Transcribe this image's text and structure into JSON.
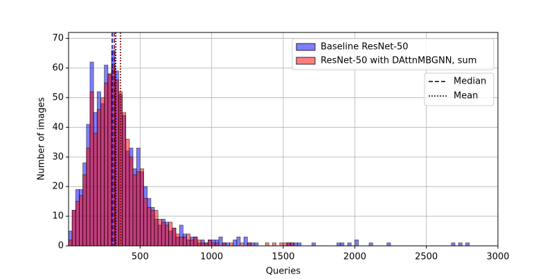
{
  "chart_data": {
    "type": "histogram",
    "xlabel": "Queries",
    "ylabel": "Number of images",
    "xlim": [
      0,
      3000
    ],
    "ylim": [
      0,
      72
    ],
    "xticks": [
      500,
      1000,
      1500,
      2000,
      2500,
      3000
    ],
    "yticks": [
      0,
      10,
      20,
      30,
      40,
      50,
      60,
      70
    ],
    "grid": true,
    "alpha": 0.5,
    "edgecolor": "#000000",
    "legend_position": "upper right",
    "series": [
      {
        "name": "Baseline ResNet-50",
        "color": "#0000ff",
        "line_color": "#00008b",
        "bins": [
          0,
          25,
          50,
          75,
          100,
          125,
          150,
          175,
          200,
          225,
          250,
          275,
          300,
          325,
          350,
          375,
          400,
          425,
          450,
          475,
          500,
          525,
          550,
          575,
          600,
          625,
          650,
          675,
          700,
          725,
          750,
          775,
          800,
          825,
          850,
          875,
          900,
          925,
          950,
          975,
          1000,
          1025,
          1050,
          1075,
          1100,
          1125,
          1150,
          1175,
          1200,
          1225,
          1250,
          1275,
          1300,
          1325,
          1350,
          1375,
          1400,
          1425,
          1450,
          1475,
          1500,
          1525,
          1550,
          1575,
          1600,
          1625,
          1650,
          1675,
          1700,
          1725,
          1750,
          1775,
          1800,
          1825,
          1850,
          1875,
          1900,
          1925,
          1950,
          1975,
          2000,
          2025,
          2050,
          2075,
          2100,
          2125,
          2150,
          2175,
          2200,
          2225,
          2250,
          2275,
          2300,
          2325,
          2350,
          2375,
          2400,
          2425,
          2450,
          2475,
          2500,
          2525,
          2550,
          2575,
          2600,
          2625,
          2650,
          2675,
          2700,
          2725,
          2750,
          2775,
          2800
        ],
        "values": [
          5,
          12,
          19,
          19,
          28,
          41,
          62,
          45,
          52,
          48,
          61,
          58,
          66,
          59,
          51,
          44,
          32,
          33,
          26,
          33,
          25,
          20,
          16,
          13,
          9,
          7,
          9,
          8,
          5,
          6,
          3,
          7,
          4,
          2,
          3,
          3,
          1,
          2,
          1,
          2,
          2,
          2,
          3,
          1,
          1,
          0,
          2,
          3,
          0,
          3,
          1,
          1,
          1,
          0,
          0,
          0,
          0,
          0,
          0,
          0,
          0,
          1,
          1,
          1,
          1,
          0,
          0,
          0,
          1,
          0,
          0,
          0,
          0,
          0,
          0,
          1,
          1,
          0,
          1,
          0,
          2,
          0,
          0,
          0,
          1,
          0,
          0,
          0,
          0,
          1,
          0,
          0,
          0,
          0,
          0,
          0,
          0,
          0,
          0,
          0,
          0,
          0,
          0,
          0,
          0,
          0,
          0,
          1,
          0,
          1,
          0,
          1
        ],
        "median": 305,
        "mean": 330
      },
      {
        "name": "ResNet-50 with DAttnMBGNN, sum",
        "color": "#ff0000",
        "line_color": "#8b0000",
        "bins": [
          0,
          25,
          50,
          75,
          100,
          125,
          150,
          175,
          200,
          225,
          250,
          275,
          300,
          325,
          350,
          375,
          400,
          425,
          450,
          475,
          500,
          525,
          550,
          575,
          600,
          625,
          650,
          675,
          700,
          725,
          750,
          775,
          800,
          825,
          850,
          875,
          900,
          925,
          950,
          975,
          1000,
          1025,
          1050,
          1075,
          1100,
          1125,
          1150,
          1175,
          1200,
          1225,
          1250,
          1275,
          1300,
          1325,
          1350,
          1375,
          1400,
          1425,
          1450,
          1475,
          1500,
          1525,
          1550,
          1575,
          1600
        ],
        "values": [
          2,
          12,
          15,
          17,
          24,
          33,
          52,
          38,
          46,
          50,
          55,
          58,
          60,
          56,
          52,
          45,
          36,
          30,
          24,
          25,
          26,
          16,
          13,
          12,
          12,
          9,
          8,
          7,
          8,
          6,
          4,
          3,
          3,
          4,
          2,
          3,
          2,
          1,
          1,
          2,
          1,
          1,
          0,
          1,
          0,
          1,
          0,
          0,
          1,
          0,
          1,
          0,
          0,
          0,
          0,
          1,
          0,
          1,
          0,
          1,
          1,
          1,
          1,
          0
        ],
        "median": 319,
        "mean": 363
      }
    ],
    "line_legend": [
      {
        "label": "Median",
        "dash": "6,3"
      },
      {
        "label": "Mean",
        "dash": "2,2"
      }
    ]
  }
}
